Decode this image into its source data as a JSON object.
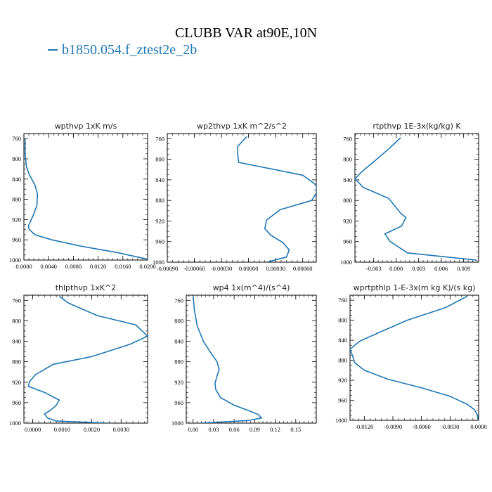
{
  "figure": {
    "title": "CLUBB VAR at90E,10N",
    "legend_label": "b1850.054.f_ztest2e_2b",
    "series_color": "#1f77b4"
  },
  "chart_data": [
    {
      "type": "line",
      "title": "wpthvp   1xK  m/s",
      "xlim": [
        0,
        0.02
      ],
      "ylim": [
        1000,
        750
      ],
      "xticks": [
        "0.0000",
        "0.0040",
        "0.0080",
        "0.0120",
        "0.0160",
        "0.0200"
      ],
      "xtick_values": [
        0,
        0.004,
        0.008,
        0.012,
        0.016,
        0.02
      ],
      "yticks": [
        "760",
        "800",
        "840",
        "880",
        "920",
        "960",
        "1000"
      ],
      "ytick_values": [
        760,
        800,
        840,
        880,
        920,
        960,
        1000
      ],
      "x": [
        0.0002,
        0.0002,
        0.0004,
        0.0009,
        0.0018,
        0.0022,
        0.0021,
        0.0015,
        0.0007,
        0.0009,
        0.0018,
        0.0045,
        0.009,
        0.015,
        0.0199
      ],
      "y": [
        760,
        790,
        815,
        832,
        852,
        870,
        892,
        912,
        933,
        940,
        950,
        960,
        972,
        985,
        998
      ]
    },
    {
      "type": "line",
      "title": "wp2thvp   1xK  m^2/s^2",
      "xlim": [
        -0.0009,
        0.00075
      ],
      "ylim": [
        1000,
        750
      ],
      "xticks": [
        "-0.00090",
        "-0.00060",
        "-0.00030",
        "0.00000",
        "0.00030",
        "0.00060"
      ],
      "xtick_values": [
        -0.0009,
        -0.0006,
        -0.0003,
        0,
        0.0003,
        0.0006
      ],
      "yticks": [
        "760",
        "800",
        "840",
        "880",
        "920",
        "960",
        "1000"
      ],
      "ytick_values": [
        760,
        800,
        840,
        880,
        920,
        960,
        1000
      ],
      "x": [
        -2e-05,
        -0.00012,
        -0.00012,
        -0.00011,
        0.0006,
        0.00075,
        0.00075,
        0.0007,
        0.00035,
        0.0002,
        0.00018,
        0.00025,
        0.00038,
        0.00045,
        0.00042,
        0.0002
      ],
      "y": [
        756,
        775,
        790,
        806,
        831,
        850,
        866,
        880,
        898,
        918,
        935,
        948,
        962,
        976,
        990,
        1000
      ]
    },
    {
      "type": "line",
      "title": "rtpthvp   1E-3x(kg/kg)  K",
      "xlim": [
        -0.0055,
        0.011
      ],
      "ylim": [
        1000,
        750
      ],
      "xticks": [
        "-0.003",
        "0.000",
        "0.003",
        "0.006",
        "0.009"
      ],
      "xtick_values": [
        -0.003,
        0,
        0.003,
        0.006,
        0.009
      ],
      "yticks": [
        "760",
        "800",
        "840",
        "880",
        "920",
        "960",
        "1000"
      ],
      "ytick_values": [
        760,
        800,
        840,
        880,
        920,
        960,
        1000
      ],
      "x": [
        0.0006,
        -0.001,
        -0.003,
        -0.0045,
        -0.0055,
        -0.0047,
        -0.0045,
        -0.001,
        0.0006,
        0.0013,
        0.0009,
        0.0007,
        -0.0015,
        -0.0008,
        0.0015,
        0.0107
      ],
      "y": [
        758,
        780,
        805,
        823,
        838,
        850,
        854,
        876,
        905,
        913,
        925,
        930,
        945,
        960,
        982,
        996
      ]
    },
    {
      "type": "line",
      "title": "thlpthvp   1xK^2",
      "xlim": [
        -0.0003,
        0.0039
      ],
      "ylim": [
        1000,
        750
      ],
      "xticks": [
        "0.0000",
        "0.0010",
        "0.0020",
        "0.0030"
      ],
      "xtick_values": [
        0,
        0.001,
        0.002,
        0.003
      ],
      "yticks": [
        "760",
        "800",
        "840",
        "880",
        "920",
        "960",
        "1000"
      ],
      "ytick_values": [
        760,
        800,
        840,
        880,
        920,
        960,
        1000
      ],
      "x": [
        0.0009,
        0.0012,
        0.0022,
        0.0035,
        0.0039,
        0.0033,
        0.002,
        0.0007,
        0.0001,
        -0.0001,
        -0.00015,
        0.0004,
        0.0009,
        0.0008,
        0.0006,
        0.0004,
        0.0005,
        0.0008,
        0.0026
      ],
      "y": [
        752,
        765,
        790,
        808,
        830,
        846,
        870,
        885,
        905,
        918,
        928,
        940,
        955,
        965,
        975,
        982,
        990,
        996,
        1000
      ]
    },
    {
      "type": "line",
      "title": "wp4   1x(m^4)/(s^4)",
      "xlim": [
        -0.01,
        0.18
      ],
      "ylim": [
        1000,
        750
      ],
      "xticks": [
        "0.00",
        "0.03",
        "0.06",
        "0.09",
        "0.12",
        "0.15"
      ],
      "xtick_values": [
        0,
        0.03,
        0.06,
        0.09,
        0.12,
        0.15
      ],
      "yticks": [
        "760",
        "800",
        "840",
        "880",
        "920",
        "960",
        "1000"
      ],
      "ytick_values": [
        760,
        800,
        840,
        880,
        920,
        960,
        1000
      ],
      "x": [
        0.0,
        0.002,
        0.006,
        0.015,
        0.027,
        0.035,
        0.038,
        0.035,
        0.032,
        0.033,
        0.04,
        0.06,
        0.08,
        0.095,
        0.1,
        0.08,
        0.04,
        0.01
      ],
      "y": [
        752,
        780,
        810,
        840,
        865,
        880,
        895,
        908,
        922,
        934,
        950,
        965,
        975,
        983,
        990,
        995,
        998,
        1000
      ]
    },
    {
      "type": "line",
      "title": "wprtpthlp   1-E-3x(m kg K)/(s kg)",
      "xlim": [
        -0.0135,
        0.0
      ],
      "ylim": [
        1000,
        750
      ],
      "xticks": [
        "-0.0120",
        "-0.0090",
        "-0.0060",
        "-0.0030",
        "0.0000"
      ],
      "xtick_values": [
        -0.012,
        -0.009,
        -0.006,
        -0.003,
        0
      ],
      "yticks": [
        "760",
        "800",
        "840",
        "880",
        "920",
        "960",
        "1000"
      ],
      "ytick_values": [
        760,
        800,
        840,
        880,
        920,
        960,
        1000
      ],
      "x": [
        -0.0012,
        -0.0035,
        -0.0075,
        -0.0105,
        -0.0125,
        -0.0135,
        -0.0132,
        -0.013,
        -0.012,
        -0.0095,
        -0.006,
        -0.003,
        -0.0012,
        -0.0005,
        -0.0002,
        -0.0001,
        -0.0001
      ],
      "y": [
        752,
        775,
        800,
        825,
        842,
        858,
        873,
        885,
        900,
        918,
        935,
        952,
        968,
        978,
        986,
        992,
        998
      ]
    }
  ]
}
